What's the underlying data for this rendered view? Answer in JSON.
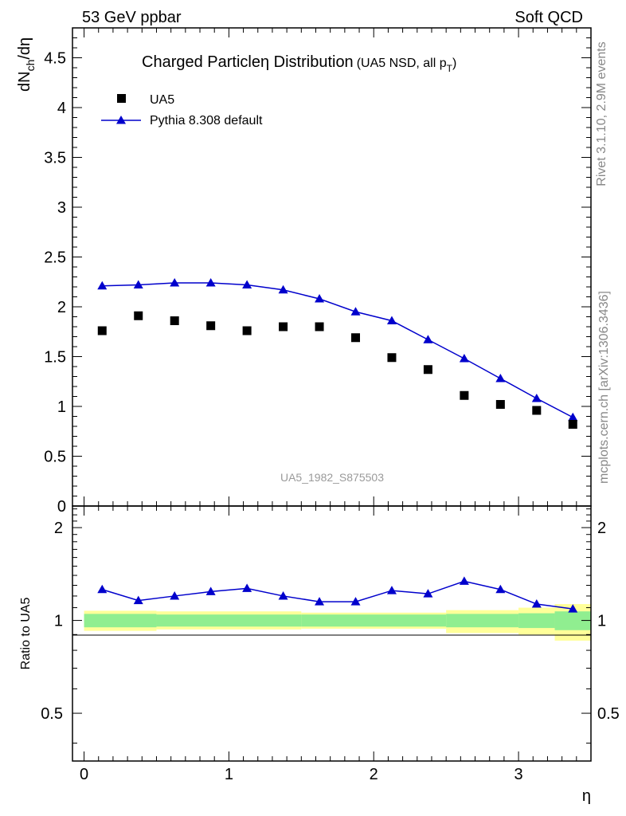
{
  "header": {
    "left": "53 GeV ppbar",
    "right": "Soft QCD"
  },
  "side_labels": {
    "top": "Rivet 3.1.10,  2.9M events",
    "bottom": "mcplots.cern.ch [arXiv:1306.3436]"
  },
  "watermark": "UA5_1982_S875503",
  "chart_data": [
    {
      "type": "scatter",
      "panel": "main",
      "title": "Charged Particleη Distribution",
      "subtitle_main": "(UA5 NSD, all p",
      "subtitle_sub": "T",
      "subtitle_end": ")",
      "ylabel_main": "dN",
      "ylabel_sub": "ch",
      "ylabel_end": "/dη",
      "xlim": [
        -0.08,
        3.5
      ],
      "ylim": [
        0,
        4.8
      ],
      "yticks": [
        0,
        0.5,
        1,
        1.5,
        2,
        2.5,
        3,
        3.5,
        4,
        4.5
      ],
      "ytick_labels": [
        "0",
        "0.5",
        "1",
        "1.5",
        "2",
        "2.5",
        "3",
        "3.5",
        "4",
        "4.5"
      ],
      "legend_position": "top-left",
      "series": [
        {
          "name": "UA5",
          "marker": "square",
          "color": "#000000",
          "x": [
            0.125,
            0.375,
            0.625,
            0.875,
            1.125,
            1.375,
            1.625,
            1.875,
            2.125,
            2.375,
            2.625,
            2.875,
            3.125,
            3.375
          ],
          "y": [
            1.76,
            1.91,
            1.86,
            1.81,
            1.76,
            1.8,
            1.8,
            1.69,
            1.49,
            1.37,
            1.11,
            1.02,
            0.96,
            0.82
          ]
        },
        {
          "name": "Pythia 8.308 default",
          "marker": "triangle",
          "color": "#0000cc",
          "x": [
            0.125,
            0.375,
            0.625,
            0.875,
            1.125,
            1.375,
            1.625,
            1.875,
            2.125,
            2.375,
            2.625,
            2.875,
            3.125,
            3.375
          ],
          "y": [
            2.21,
            2.22,
            2.24,
            2.24,
            2.22,
            2.17,
            2.08,
            1.95,
            1.86,
            1.67,
            1.48,
            1.28,
            1.08,
            0.89
          ]
        }
      ]
    },
    {
      "type": "line",
      "panel": "ratio",
      "ylabel": "Ratio to UA5",
      "xlabel": "η",
      "xlim": [
        -0.08,
        3.5
      ],
      "ylim": [
        0.35,
        2.35
      ],
      "xticks": [
        0,
        1,
        2,
        3
      ],
      "xtick_labels": [
        "0",
        "1",
        "2",
        "3"
      ],
      "yticks": [
        0.5,
        1,
        2
      ],
      "ytick_labels": [
        "0.5",
        "1",
        "2"
      ],
      "reference_line": 1,
      "band_edges": [
        0,
        0.5,
        1.5,
        2.5,
        3.0,
        3.25,
        3.5
      ],
      "stat_band": {
        "color": "#90ee90",
        "low": [
          0.95,
          0.955,
          0.955,
          0.95,
          0.945,
          0.93
        ],
        "high": [
          1.05,
          1.045,
          1.045,
          1.05,
          1.055,
          1.07
        ]
      },
      "syst_band": {
        "color": "#ffff99",
        "low": [
          0.925,
          0.935,
          0.94,
          0.91,
          0.9,
          0.86
        ],
        "high": [
          1.075,
          1.07,
          1.06,
          1.08,
          1.1,
          1.13
        ]
      },
      "series": [
        {
          "name": "Pythia 8.308 default",
          "color": "#0000cc",
          "x": [
            0.125,
            0.375,
            0.625,
            0.875,
            1.125,
            1.375,
            1.625,
            1.875,
            2.125,
            2.375,
            2.625,
            2.875,
            3.125,
            3.375
          ],
          "y": [
            1.26,
            1.16,
            1.2,
            1.24,
            1.27,
            1.2,
            1.15,
            1.15,
            1.25,
            1.22,
            1.34,
            1.26,
            1.13,
            1.09
          ]
        }
      ]
    }
  ]
}
